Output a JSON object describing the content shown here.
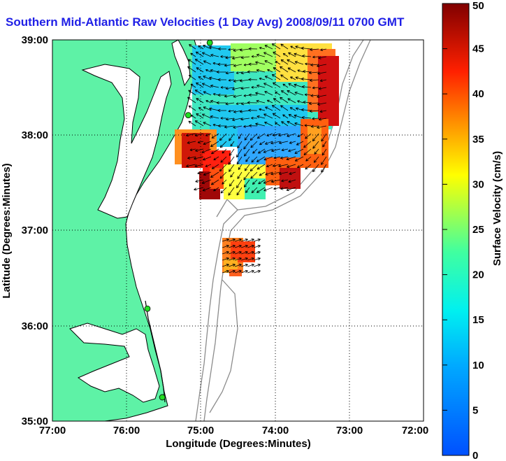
{
  "title": "Southern Mid-Atlantic Raw Velocities (1 Day Avg) 2008/09/11 0700 GMT",
  "map": {
    "xlabel": "Longitude (Degrees:Minutes)",
    "ylabel": "Latitude (Degrees:Minutes)",
    "lon_ticks": [
      "77:00",
      "76:00",
      "75:00",
      "74:00",
      "73:00",
      "72:00"
    ],
    "lat_ticks": [
      "39:00",
      "38:00",
      "37:00",
      "36:00",
      "35:00"
    ],
    "lon_range": [
      -77,
      -72
    ],
    "lat_range": [
      35,
      39
    ],
    "colors": {
      "land": "#5ef2a6",
      "coast": "#000000",
      "bathymetry": "#8c8c8c",
      "title": "#1f1fe6"
    }
  },
  "colorbar": {
    "label": "Surface Velocity (cm/s)",
    "ticks": [
      "50",
      "45",
      "40",
      "35",
      "30",
      "25",
      "20",
      "15",
      "10",
      "5",
      "0"
    ],
    "range": [
      0,
      50
    ]
  },
  "stations": [
    {
      "lon": -74.88,
      "lat": 38.97
    },
    {
      "lon": -75.17,
      "lat": 38.21
    },
    {
      "lon": -75.72,
      "lat": 36.18
    },
    {
      "lon": -75.52,
      "lat": 35.25
    }
  ]
}
